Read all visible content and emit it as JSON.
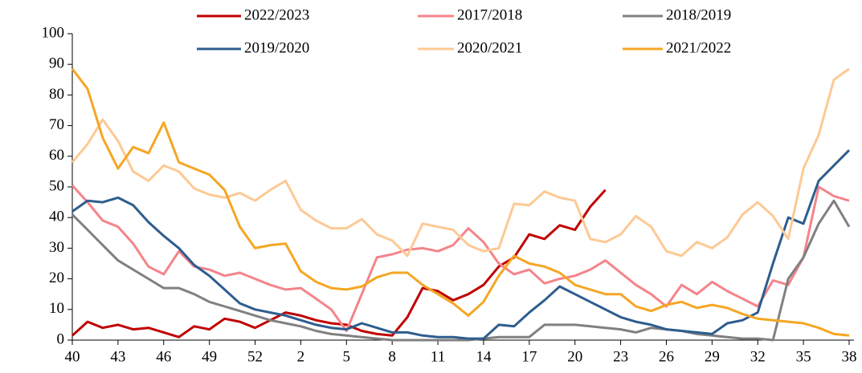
{
  "chart_data": {
    "type": "line",
    "categories": [
      "40",
      null,
      null,
      "43",
      null,
      null,
      "46",
      null,
      null,
      "49",
      null,
      null,
      "52",
      null,
      null,
      "2",
      null,
      null,
      "5",
      null,
      null,
      "8",
      null,
      null,
      "11",
      null,
      null,
      "14",
      null,
      null,
      "17",
      null,
      null,
      "20",
      null,
      null,
      "23",
      null,
      null,
      "26",
      null,
      null,
      "29",
      null,
      null,
      "32",
      null,
      null,
      "35",
      null,
      null,
      "38"
    ],
    "ylim": [
      0,
      100
    ],
    "yticks": [
      0,
      10,
      20,
      30,
      40,
      50,
      60,
      70,
      80,
      90,
      100
    ],
    "series": [
      {
        "name": "2022/2023",
        "color": "#c00000",
        "values": [
          1.5,
          6,
          4,
          5,
          3.5,
          4,
          2.5,
          1,
          4.5,
          3.5,
          7,
          6,
          4,
          6.5,
          9,
          8,
          6.5,
          5.5,
          5,
          3,
          2,
          1.5,
          7.5,
          17,
          16,
          13,
          15,
          18,
          24,
          27,
          34.5,
          33,
          37.5,
          36,
          43.5,
          49,
          null,
          null,
          null,
          null,
          null,
          null,
          null,
          null,
          null,
          null,
          null,
          null,
          null,
          null,
          null,
          null
        ]
      },
      {
        "name": "2017/2018",
        "color": "#f4848a",
        "values": [
          50.5,
          45,
          39,
          37,
          31.5,
          24,
          21.5,
          29,
          24,
          23,
          21,
          22,
          20,
          18,
          16.5,
          17,
          13.5,
          10,
          3,
          15,
          27,
          28,
          29.5,
          30,
          29,
          31,
          36.5,
          32,
          25,
          21.5,
          23,
          18.5,
          20,
          21,
          23,
          26,
          22,
          18,
          15,
          11,
          18,
          15,
          19,
          16,
          13.5,
          11,
          19.5,
          18,
          27,
          50,
          47,
          45.5
        ]
      },
      {
        "name": "2018/2019",
        "color": "#808080",
        "values": [
          41,
          36,
          31,
          26,
          23,
          20,
          17,
          17,
          15,
          12.5,
          11,
          9.5,
          8,
          6.5,
          5.5,
          4.5,
          3,
          2,
          1.5,
          1,
          0.5,
          0,
          0,
          0,
          0,
          0,
          0,
          0.5,
          1,
          1,
          1,
          5,
          5,
          5,
          4.5,
          4,
          3.5,
          2.5,
          4,
          3.5,
          3,
          2,
          1.5,
          1,
          0.5,
          0.5,
          0,
          20,
          27,
          38,
          45.5,
          37
        ]
      },
      {
        "name": "2019/2020",
        "color": "#2e5d8e",
        "values": [
          42,
          45.5,
          45,
          46.5,
          44,
          38.5,
          34,
          30,
          24.5,
          21,
          16.5,
          12,
          10,
          9,
          8,
          6.5,
          5,
          4,
          3.5,
          5.5,
          4,
          2.5,
          2.5,
          1.5,
          1,
          1,
          0.5,
          0.5,
          5,
          4.5,
          9,
          13,
          17.5,
          15,
          12.5,
          10,
          7.5,
          6,
          5,
          3.5,
          3,
          2.5,
          2,
          5.5,
          6.5,
          9,
          25,
          40,
          38,
          52,
          57,
          62
        ]
      },
      {
        "name": "2020/2021",
        "color": "#fdc994",
        "values": [
          58,
          64,
          72,
          65,
          55,
          52,
          57,
          55,
          49.5,
          47.5,
          46.5,
          48,
          45.5,
          49,
          52,
          42.5,
          39,
          36.5,
          36.5,
          39.5,
          34.5,
          32.5,
          27.5,
          38,
          37,
          36,
          31,
          29,
          30,
          44.5,
          44,
          48.5,
          46.5,
          45.5,
          33,
          32,
          34.5,
          40.5,
          37,
          29,
          27.5,
          32,
          30,
          33.5,
          41,
          45,
          40.5,
          33,
          56,
          67,
          85,
          88.5
        ]
      },
      {
        "name": "2021/2022",
        "color": "#f5a623",
        "values": [
          88.5,
          82,
          66,
          56,
          63,
          61,
          71,
          58,
          56,
          54,
          49,
          37,
          30,
          31,
          31.5,
          22.5,
          19,
          17,
          16.5,
          17.5,
          20.5,
          22,
          22,
          18,
          15,
          12,
          8,
          12.5,
          21,
          27.5,
          25,
          24,
          22,
          18,
          16.5,
          15,
          15,
          11,
          9.5,
          11.5,
          12.5,
          10.5,
          11.5,
          10.5,
          8.5,
          7,
          6.5,
          6,
          5.5,
          4,
          2,
          1.5
        ]
      }
    ]
  }
}
